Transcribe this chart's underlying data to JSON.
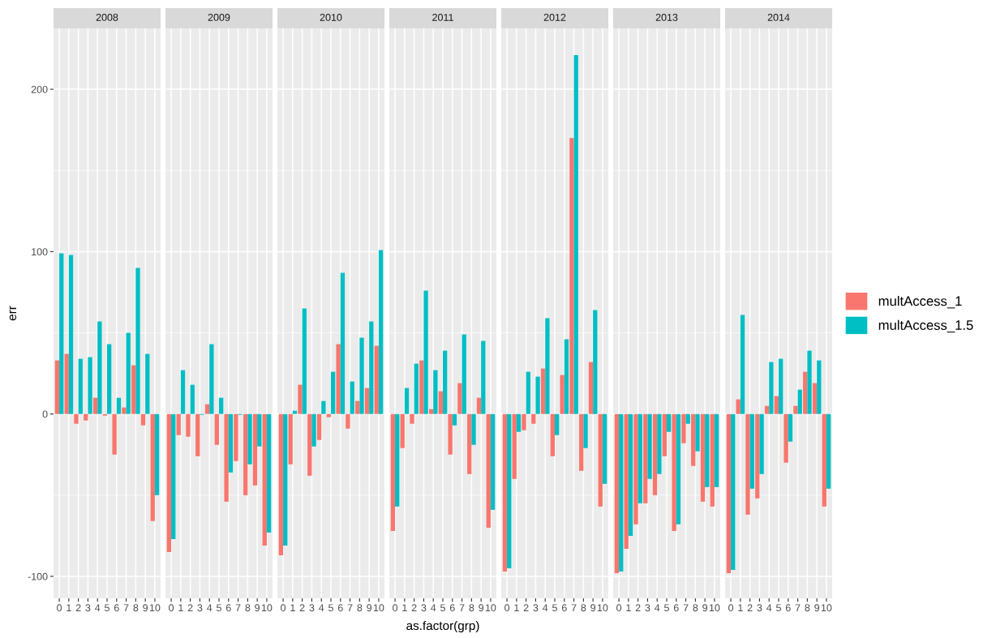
{
  "chart_data": [
    {
      "type": "bar",
      "title": "2008",
      "ylabel": "err",
      "categories": [
        "0",
        "1",
        "2",
        "3",
        "4",
        "5",
        "6",
        "7",
        "8",
        "9",
        "10"
      ],
      "ylim": [
        -113.5,
        237.5
      ],
      "yticks": [
        -100,
        0,
        100,
        200
      ],
      "grid": true,
      "series": [
        {
          "color": "#f8766d",
          "values": [
            33,
            37,
            -6,
            -4,
            10,
            -1,
            -25,
            4,
            30,
            -7,
            -66
          ]
        },
        {
          "color": "#00bfc4",
          "values": [
            99,
            98,
            34,
            35,
            57,
            43,
            10,
            50,
            90,
            37,
            -50
          ]
        }
      ]
    },
    {
      "type": "bar",
      "title": "2009",
      "categories": [
        "0",
        "1",
        "2",
        "3",
        "4",
        "5",
        "6",
        "7",
        "8",
        "9",
        "10"
      ],
      "ylim": [
        -113.5,
        237.5
      ],
      "yticks": [
        -100,
        0,
        100,
        200
      ],
      "grid": true,
      "tick_labels": "x",
      "series": [
        {
          "color": "#f8766d",
          "values": [
            -85,
            -13,
            -14,
            -26,
            6,
            -19,
            -54,
            -29,
            -50,
            -44,
            -81
          ]
        },
        {
          "color": "#00bfc4",
          "values": [
            -77,
            27,
            18,
            -0.5,
            43,
            10,
            -36,
            -0.5,
            -31,
            -20,
            -73
          ]
        }
      ]
    },
    {
      "type": "bar",
      "title": "2010",
      "categories": [
        "0",
        "1",
        "2",
        "3",
        "4",
        "5",
        "6",
        "7",
        "8",
        "9",
        "10"
      ],
      "ylim": [
        -113.5,
        237.5
      ],
      "yticks": [
        -100,
        0,
        100,
        200
      ],
      "grid": true,
      "tick_labels": "x",
      "series": [
        {
          "color": "#f8766d",
          "values": [
            -87,
            -31,
            18,
            -38,
            -16,
            -2,
            43,
            -9,
            8,
            16,
            42
          ]
        },
        {
          "color": "#00bfc4",
          "values": [
            -81,
            2,
            65,
            -20,
            8,
            26,
            87,
            20,
            47,
            57,
            101
          ]
        }
      ]
    },
    {
      "type": "bar",
      "title": "2011",
      "xlabel": "as.factor(grp)",
      "categories": [
        "0",
        "1",
        "2",
        "3",
        "4",
        "5",
        "6",
        "7",
        "8",
        "9",
        "10"
      ],
      "ylim": [
        -113.5,
        237.5
      ],
      "yticks": [
        -100,
        0,
        100,
        200
      ],
      "grid": true,
      "tick_labels": "x",
      "series": [
        {
          "color": "#f8766d",
          "values": [
            -72,
            -21,
            -6,
            33,
            3,
            14,
            -25,
            19,
            -37,
            10,
            -70
          ]
        },
        {
          "color": "#00bfc4",
          "values": [
            -57,
            16,
            31,
            76,
            27,
            39,
            -7,
            49,
            -19,
            45,
            -59
          ]
        }
      ]
    },
    {
      "type": "bar",
      "title": "2012",
      "categories": [
        "0",
        "1",
        "2",
        "3",
        "4",
        "5",
        "6",
        "7",
        "8",
        "9",
        "10"
      ],
      "ylim": [
        -113.5,
        237.5
      ],
      "yticks": [
        -100,
        0,
        100,
        200
      ],
      "grid": true,
      "tick_labels": "x",
      "series": [
        {
          "color": "#f8766d",
          "values": [
            -97,
            -40,
            -10,
            -6,
            28,
            -26,
            24,
            170,
            -35,
            32,
            -57
          ]
        },
        {
          "color": "#00bfc4",
          "values": [
            -95,
            -11,
            26,
            23,
            59,
            -13,
            46,
            221,
            -21,
            64,
            -43
          ]
        }
      ]
    },
    {
      "type": "bar",
      "title": "2013",
      "categories": [
        "0",
        "1",
        "2",
        "3",
        "4",
        "5",
        "6",
        "7",
        "8",
        "9",
        "10"
      ],
      "ylim": [
        -113.5,
        237.5
      ],
      "yticks": [
        -100,
        0,
        100,
        200
      ],
      "grid": true,
      "tick_labels": "x",
      "series": [
        {
          "color": "#f8766d",
          "values": [
            -98,
            -83,
            -68,
            -55,
            -50,
            -26,
            -72,
            -18,
            -32,
            -54,
            -57
          ]
        },
        {
          "color": "#00bfc4",
          "values": [
            -97,
            -75,
            -55,
            -40,
            -37,
            -11,
            -68,
            -6,
            -23,
            -45,
            -45
          ]
        }
      ]
    },
    {
      "type": "bar",
      "title": "2014",
      "categories": [
        "0",
        "1",
        "2",
        "3",
        "4",
        "5",
        "6",
        "7",
        "8",
        "9",
        "10"
      ],
      "ylim": [
        -113.5,
        237.5
      ],
      "yticks": [
        -100,
        0,
        100,
        200
      ],
      "grid": true,
      "tick_labels": "x",
      "legend": "right",
      "series": [
        {
          "name": "multAccess_1",
          "color": "#f8766d",
          "values": [
            -98,
            9,
            -62,
            -52,
            5,
            11,
            -30,
            5,
            26,
            19,
            -57
          ]
        },
        {
          "name": "multAccess_1.5",
          "color": "#00bfc4",
          "values": [
            -96,
            61,
            -46,
            -37,
            32,
            34,
            -17,
            15,
            39,
            33,
            -46
          ]
        }
      ]
    }
  ]
}
